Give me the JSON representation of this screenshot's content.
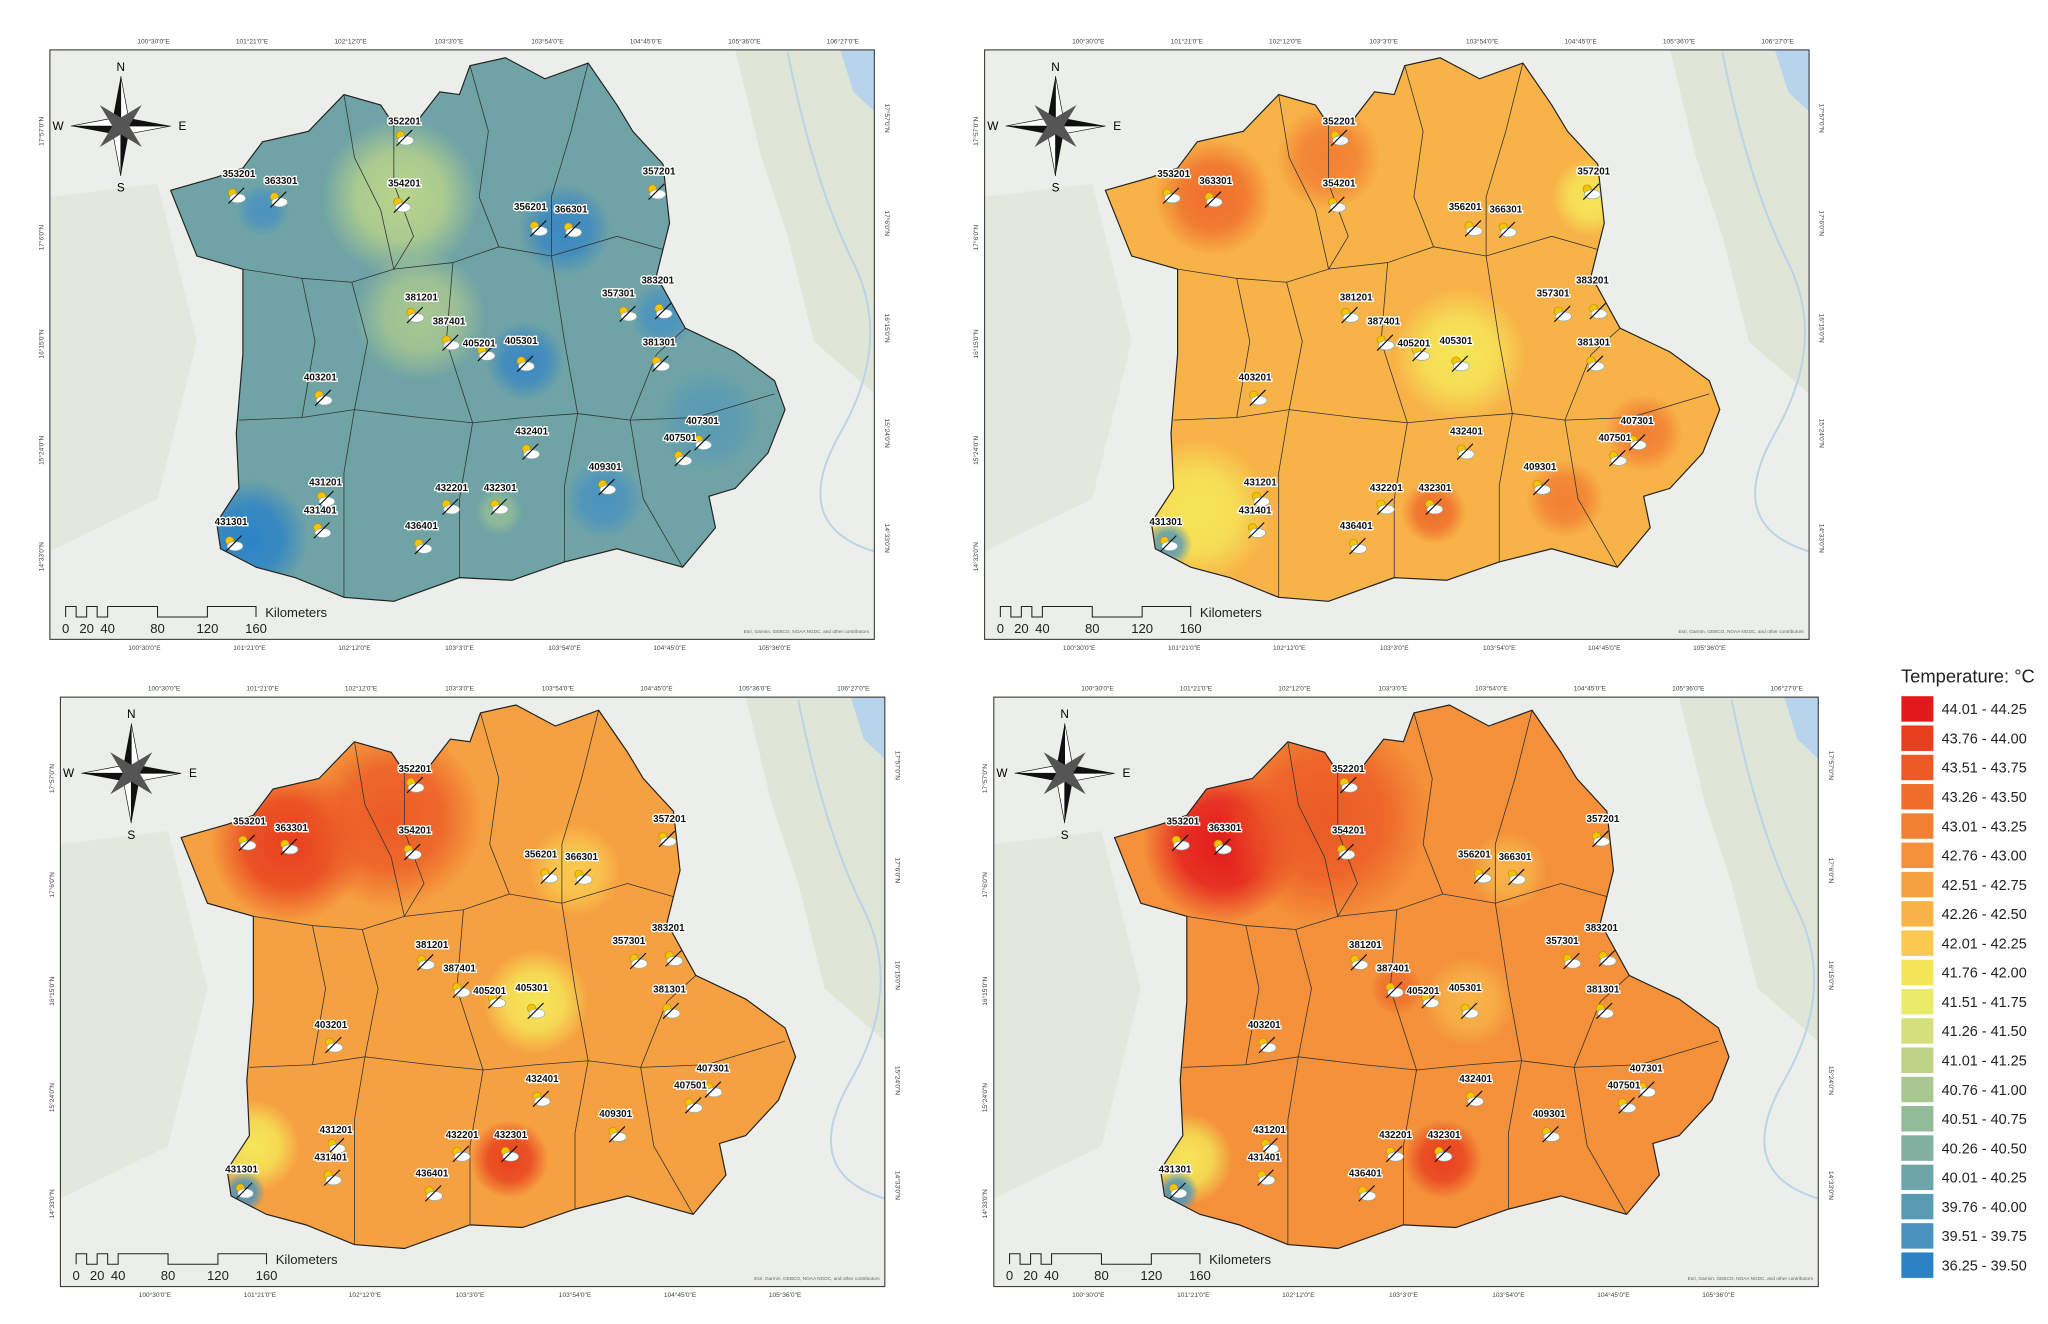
{
  "legend": {
    "title": "Temperature: °C",
    "classes": [
      {
        "label": "44.01 - 44.25",
        "color": "#e31a1c"
      },
      {
        "label": "43.76 - 44.00",
        "color": "#e8401f"
      },
      {
        "label": "43.51 - 43.75",
        "color": "#ec5a26"
      },
      {
        "label": "43.26 - 43.50",
        "color": "#ef6e2c"
      },
      {
        "label": "43.01 - 43.25",
        "color": "#f28033"
      },
      {
        "label": "42.76 - 43.00",
        "color": "#f4913a"
      },
      {
        "label": "42.51 - 42.75",
        "color": "#f6a141"
      },
      {
        "label": "42.26 - 42.50",
        "color": "#f8b348"
      },
      {
        "label": "42.01 - 42.25",
        "color": "#fac94f"
      },
      {
        "label": "41.76 - 42.00",
        "color": "#f5e658"
      },
      {
        "label": "41.51 - 41.75",
        "color": "#eaeb68"
      },
      {
        "label": "41.26 - 41.50",
        "color": "#d5e07c"
      },
      {
        "label": "41.01 - 41.25",
        "color": "#bdd486"
      },
      {
        "label": "40.76 - 41.00",
        "color": "#a8c890"
      },
      {
        "label": "40.51 - 40.75",
        "color": "#92bc98"
      },
      {
        "label": "40.26 - 40.50",
        "color": "#7fb0a0"
      },
      {
        "label": "40.01 - 40.25",
        "color": "#6ea5a8"
      },
      {
        "label": "39.76 - 40.00",
        "color": "#5a9bb4"
      },
      {
        "label": "39.51 - 39.75",
        "color": "#4a93be"
      },
      {
        "label": "36.25 - 39.50",
        "color": "#2b83c6"
      }
    ]
  },
  "map_text": {
    "compass": [
      "N",
      "E",
      "S",
      "W"
    ],
    "scale_labels": [
      "0",
      "20",
      "40",
      "80",
      "120",
      "160"
    ],
    "scale_unit": "Kilometers",
    "attribution": "Esri, Garmin, GEBCO, NOAA NGDC, and other contributors",
    "top_ticks": [
      "100°30'0\"E",
      "101°21'0\"E",
      "102°12'0\"E",
      "103°3'0\"E",
      "103°54'0\"E",
      "104°45'0\"E",
      "105°36'0\"E",
      "106°27'0\"E"
    ],
    "bottom_ticks": [
      "100°30'0\"E",
      "101°21'0\"E",
      "102°12'0\"E",
      "103°3'0\"E",
      "103°54'0\"E",
      "104°45'0\"E",
      "105°36'0\"E"
    ],
    "left_ticks": [
      "17°57'0\"N",
      "17°6'0\"N",
      "16°15'0\"N",
      "15°24'0\"N",
      "14°33'0\"N"
    ],
    "right_ticks": [
      "17°57'0\"N",
      "17°6'0\"N",
      "16°15'0\"N",
      "15°24'0\"N",
      "14°33'0\"N"
    ]
  },
  "stations": [
    "352201",
    "353201",
    "363301",
    "354201",
    "357201",
    "356201",
    "366301",
    "383201",
    "357301",
    "381201",
    "387401",
    "405201",
    "405301",
    "381301",
    "403201",
    "432401",
    "407301",
    "407501",
    "409301",
    "431201",
    "432201",
    "432301",
    "431401",
    "431301",
    "436401"
  ]
}
